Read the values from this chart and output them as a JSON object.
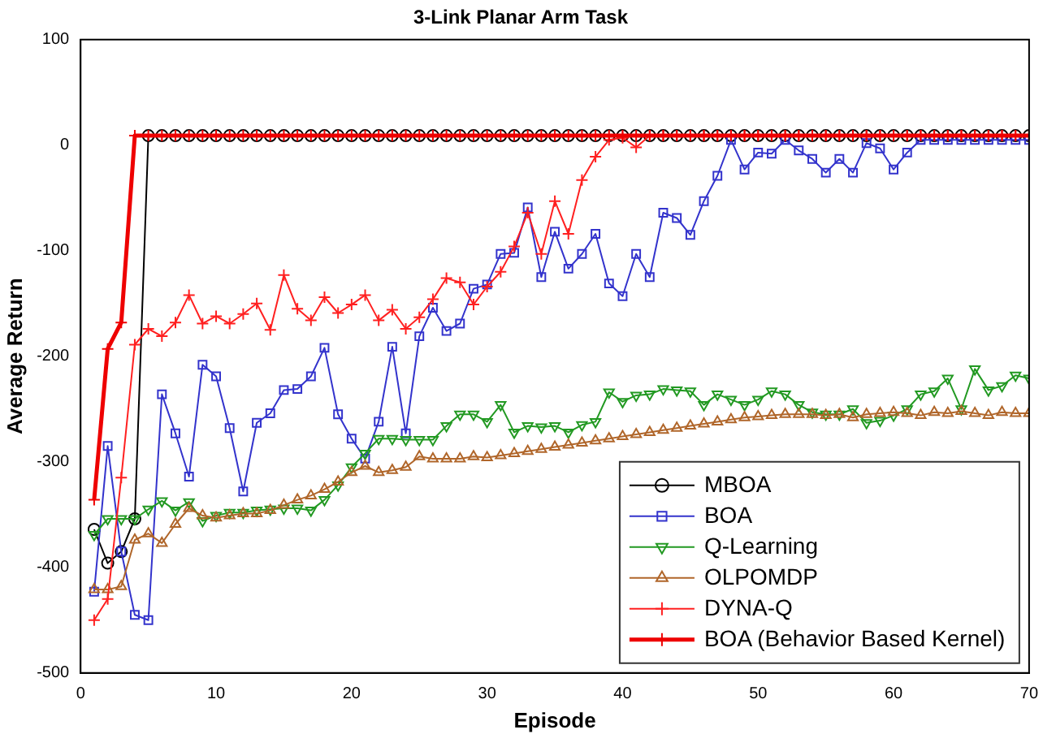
{
  "chart_data": {
    "type": "line",
    "title": "3-Link Planar Arm Task",
    "xlabel": "Episode",
    "ylabel": "Average Return",
    "x": [
      1,
      2,
      3,
      4,
      5,
      6,
      7,
      8,
      9,
      10,
      11,
      12,
      13,
      14,
      15,
      16,
      17,
      18,
      19,
      20,
      21,
      22,
      23,
      24,
      25,
      26,
      27,
      28,
      29,
      30,
      31,
      32,
      33,
      34,
      35,
      36,
      37,
      38,
      39,
      40,
      41,
      42,
      43,
      44,
      45,
      46,
      47,
      48,
      49,
      50,
      51,
      52,
      53,
      54,
      55,
      56,
      57,
      58,
      59,
      60,
      61,
      62,
      63,
      64,
      65,
      66,
      67,
      68,
      69,
      70
    ],
    "xlim": [
      0,
      70
    ],
    "xticks": [
      0,
      10,
      20,
      30,
      40,
      50,
      60,
      70
    ],
    "ylim": [
      -500,
      100
    ],
    "yticks": [
      -500,
      -400,
      -300,
      -200,
      -100,
      0,
      100
    ],
    "grid": false,
    "legend": "bottom right",
    "series": [
      {
        "name": "MBOA",
        "color": "#000000",
        "marker": "circle",
        "values": [
          -364,
          -396,
          -385,
          -354,
          9,
          9,
          9,
          9,
          9,
          9,
          9,
          9,
          9,
          9,
          9,
          9,
          9,
          9,
          9,
          9,
          9,
          9,
          9,
          9,
          9,
          9,
          9,
          9,
          9,
          9,
          9,
          9,
          9,
          9,
          9,
          9,
          9,
          9,
          9,
          9,
          9,
          9,
          9,
          9,
          9,
          9,
          9,
          9,
          9,
          9,
          9,
          9,
          9,
          9,
          9,
          9,
          9,
          9,
          9,
          9,
          9,
          9,
          9,
          9,
          9,
          9,
          9,
          9,
          9,
          9
        ]
      },
      {
        "name": "BOA",
        "color": "#3333cc",
        "marker": "square",
        "values": [
          -423,
          -285,
          -385,
          -445,
          -450,
          -236,
          -273,
          -314,
          -208,
          -219,
          -268,
          -328,
          -263,
          -254,
          -232,
          -231,
          -219,
          -192,
          -255,
          -278,
          -297,
          -262,
          -191,
          -273,
          -181,
          -154,
          -176,
          -169,
          -136,
          -132,
          -103,
          -102,
          -59,
          -125,
          -82,
          -117,
          -103,
          -84,
          -131,
          -143,
          -103,
          -125,
          -64,
          -69,
          -85,
          -53,
          -29,
          5,
          -23,
          -7,
          -8,
          5,
          -5,
          -13,
          -26,
          -13,
          -26,
          2,
          -3,
          -23,
          -7,
          5,
          5,
          5,
          5,
          5,
          5,
          5,
          5,
          5
        ]
      },
      {
        "name": "Q-Learning",
        "color": "#229922",
        "marker": "triangle",
        "values": [
          -369,
          -354,
          -354,
          -354,
          -345,
          -337,
          -346,
          -338,
          -356,
          -351,
          -348,
          -348,
          -346,
          -345,
          -344,
          -344,
          -346,
          -336,
          -322,
          -305,
          -292,
          -278,
          -278,
          -279,
          -279,
          -279,
          -266,
          -255,
          -255,
          -262,
          -246,
          -272,
          -266,
          -267,
          -266,
          -272,
          -265,
          -262,
          -234,
          -243,
          -237,
          -236,
          -231,
          -232,
          -233,
          -246,
          -236,
          -241,
          -246,
          -241,
          -233,
          -236,
          -246,
          -253,
          -255,
          -255,
          -250,
          -263,
          -261,
          -256,
          -250,
          -236,
          -233,
          -221,
          -250,
          -212,
          -232,
          -228,
          -218,
          -221
        ]
      },
      {
        "name": "OLPOMDP",
        "color": "#b0662a",
        "marker": "triangle",
        "values": [
          -421,
          -421,
          -418,
          -374,
          -368,
          -377,
          -359,
          -344,
          -351,
          -353,
          -351,
          -349,
          -349,
          -346,
          -341,
          -336,
          -332,
          -326,
          -319,
          -310,
          -304,
          -310,
          -308,
          -305,
          -295,
          -297,
          -297,
          -297,
          -295,
          -296,
          -294,
          -292,
          -290,
          -288,
          -286,
          -284,
          -282,
          -280,
          -278,
          -276,
          -274,
          -272,
          -270,
          -268,
          -266,
          -264,
          -262,
          -260,
          -258,
          -257,
          -256,
          -255,
          -255,
          -255,
          -256,
          -255,
          -258,
          -255,
          -254,
          -253,
          -254,
          -256,
          -253,
          -254,
          -252,
          -254,
          -256,
          -253,
          -254,
          -254
        ]
      },
      {
        "name": "DYNA-Q",
        "color": "#ff2020",
        "marker": "cross",
        "values": [
          -450,
          -430,
          -315,
          -189,
          -174,
          -181,
          -168,
          -142,
          -169,
          -162,
          -169,
          -160,
          -150,
          -175,
          -123,
          -155,
          -166,
          -144,
          -159,
          -151,
          -142,
          -166,
          -156,
          -174,
          -163,
          -146,
          -126,
          -130,
          -151,
          -134,
          -120,
          -96,
          -64,
          -103,
          -53,
          -84,
          -33,
          -11,
          5,
          7,
          -2,
          9,
          9,
          9,
          9,
          9,
          9,
          9,
          9,
          9,
          9,
          9,
          9,
          9,
          9,
          9,
          9,
          9,
          9,
          9,
          9,
          9,
          9,
          9,
          9,
          9,
          9,
          9,
          9,
          9
        ]
      },
      {
        "name": "BOA (Behavior Based Kernel)",
        "color": "#ee0000",
        "marker": "cross",
        "values": [
          -336,
          -193,
          -168,
          9,
          9,
          9,
          9,
          9,
          9,
          9,
          9,
          9,
          9,
          9,
          9,
          9,
          9,
          9,
          9,
          9,
          9,
          9,
          9,
          9,
          9,
          9,
          9,
          9,
          9,
          9,
          9,
          9,
          9,
          9,
          9,
          9,
          9,
          9,
          9,
          9,
          9,
          9,
          9,
          9,
          9,
          9,
          9,
          9,
          9,
          9,
          9,
          9,
          9,
          9,
          9,
          9,
          9,
          9,
          9,
          9,
          9,
          9,
          9,
          9,
          9,
          9,
          9,
          9,
          9,
          9
        ]
      }
    ]
  }
}
